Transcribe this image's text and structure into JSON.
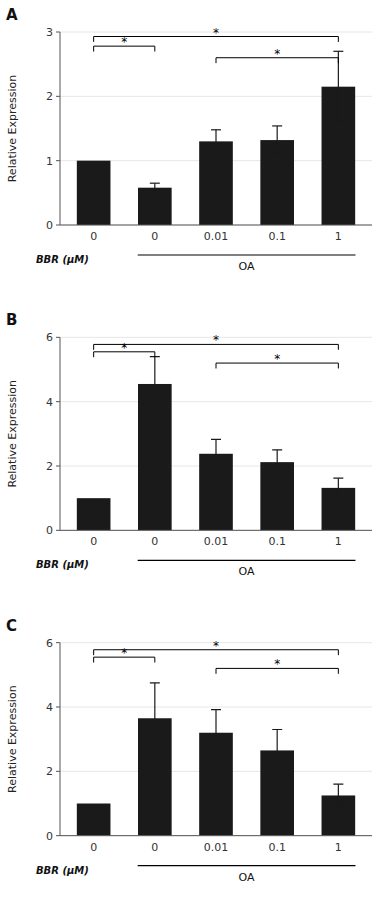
{
  "chart_data": [
    {
      "type": "bar",
      "title": "A",
      "x_label": "BBR (μM)",
      "y_label": "Relative Expression",
      "categories": [
        "0",
        "0",
        "0.01",
        "0.1",
        "1"
      ],
      "values": [
        1.0,
        0.58,
        1.3,
        1.32,
        2.15
      ],
      "errors": [
        0.0,
        0.07,
        0.18,
        0.22,
        0.55
      ],
      "color": "#1a1a1a",
      "ylim": [
        0,
        3
      ],
      "yticks": [
        0,
        1,
        2,
        3
      ],
      "annotations": [
        {
          "type": "bracket",
          "x1": 0,
          "x2": 1,
          "y": 2.78,
          "text": "*"
        },
        {
          "type": "bracket",
          "x1": 0,
          "x2": 4,
          "y": 2.93,
          "text": "*"
        },
        {
          "type": "bracket",
          "x1": 2,
          "x2": 4,
          "y": 2.6,
          "text": "*"
        },
        {
          "type": "group",
          "x1": 1,
          "x2": 4,
          "text": "OA"
        }
      ]
    },
    {
      "type": "bar",
      "title": "B",
      "x_label": "BBR (μM)",
      "y_label": "Relative Expression",
      "categories": [
        "0",
        "0",
        "0.01",
        "0.1",
        "1"
      ],
      "values": [
        1.0,
        4.55,
        2.38,
        2.12,
        1.32
      ],
      "errors": [
        0.0,
        0.85,
        0.45,
        0.38,
        0.3
      ],
      "color": "#1a1a1a",
      "ylim": [
        0,
        6
      ],
      "yticks": [
        0,
        2,
        4,
        6
      ],
      "annotations": [
        {
          "type": "bracket",
          "x1": 0,
          "x2": 1,
          "y": 5.55,
          "text": "*"
        },
        {
          "type": "bracket",
          "x1": 0,
          "x2": 4,
          "y": 5.78,
          "text": "*"
        },
        {
          "type": "bracket",
          "x1": 2,
          "x2": 4,
          "y": 5.2,
          "text": "*"
        },
        {
          "type": "group",
          "x1": 1,
          "x2": 4,
          "text": "OA"
        }
      ]
    },
    {
      "type": "bar",
      "title": "C",
      "x_label": "BBR (μM)",
      "y_label": "Relative Expression",
      "categories": [
        "0",
        "0",
        "0.01",
        "0.1",
        "1"
      ],
      "values": [
        1.0,
        3.65,
        3.2,
        2.65,
        1.25
      ],
      "errors": [
        0.0,
        1.1,
        0.72,
        0.65,
        0.35
      ],
      "color": "#1a1a1a",
      "ylim": [
        0,
        6
      ],
      "yticks": [
        0,
        2,
        4,
        6
      ],
      "annotations": [
        {
          "type": "bracket",
          "x1": 0,
          "x2": 1,
          "y": 5.55,
          "text": "*"
        },
        {
          "type": "bracket",
          "x1": 0,
          "x2": 4,
          "y": 5.78,
          "text": "*"
        },
        {
          "type": "bracket",
          "x1": 2,
          "x2": 4,
          "y": 5.2,
          "text": "*"
        },
        {
          "type": "group",
          "x1": 1,
          "x2": 4,
          "text": "OA"
        }
      ]
    }
  ]
}
